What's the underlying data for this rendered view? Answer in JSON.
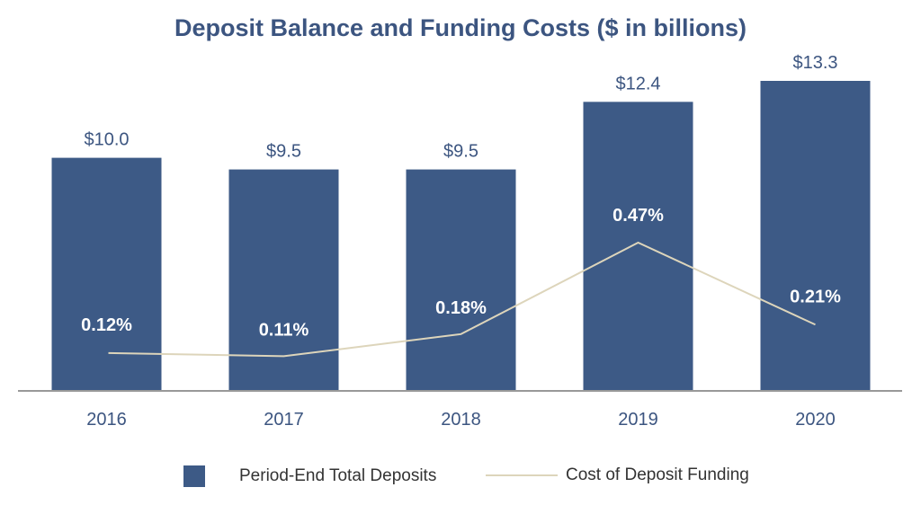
{
  "chart_data": {
    "type": "bar",
    "title": "Deposit Balance and Funding Costs ($ in billions)",
    "categories": [
      "2016",
      "2017",
      "2018",
      "2019",
      "2020"
    ],
    "series": [
      {
        "name": "Period-End Total Deposits",
        "kind": "bar",
        "values": [
          10.0,
          9.5,
          9.5,
          12.4,
          13.3
        ],
        "labels": [
          "$10.0",
          "$9.5",
          "$9.5",
          "$12.4",
          "$13.3"
        ],
        "color": "#3d5a86"
      },
      {
        "name": "Cost of Deposit Funding",
        "kind": "line",
        "values": [
          0.12,
          0.11,
          0.18,
          0.47,
          0.21
        ],
        "labels": [
          "0.12%",
          "0.11%",
          "0.18%",
          "0.47%",
          "0.21%"
        ],
        "color": "#ddd5bb"
      }
    ],
    "ylim_bars": [
      0,
      13.3
    ],
    "ylim_line": [
      0,
      0.47
    ],
    "xlabel": "",
    "ylabel": "",
    "grid": false,
    "legend": "bottom-center"
  },
  "colors": {
    "title": "#3c5580",
    "axis": "#999999",
    "bar_label": "#3c5580",
    "tick": "#3c5580",
    "line_label": "#ffffff"
  }
}
